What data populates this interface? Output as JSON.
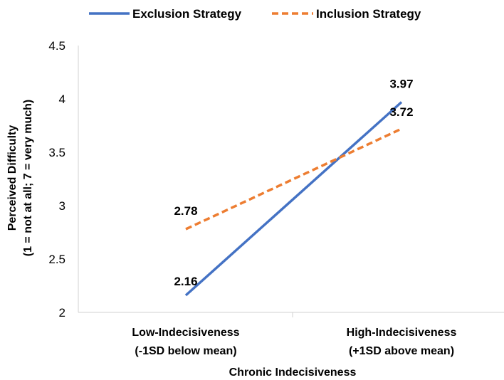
{
  "chart_data": {
    "type": "line",
    "categories": [
      "Low-Indecisiveness",
      "High-Indecisiveness"
    ],
    "category_sublabels": [
      "(-1SD below mean)",
      "(+1SD above mean)"
    ],
    "series": [
      {
        "name": "Exclusion Strategy",
        "values": [
          2.16,
          3.97
        ],
        "color": "#4472C4",
        "dash": "solid"
      },
      {
        "name": "Inclusion Strategy",
        "values": [
          2.78,
          3.72
        ],
        "color": "#ED7D31",
        "dash": "dashed"
      }
    ],
    "xlabel": "Chronic Indecisiveness",
    "ylabel": "Perceived Difficulty",
    "ylabel_sub": "(1 = not at all; 7 = very much)",
    "ylim": [
      2,
      4.5
    ],
    "yticks": [
      "2",
      "2.5",
      "3",
      "3.5",
      "4",
      "4.5"
    ],
    "ytick_values": [
      2,
      2.5,
      3,
      3.5,
      4,
      4.5
    ],
    "data_labels": [
      "2.16",
      "3.97",
      "2.78",
      "3.72"
    ],
    "legend_position": "top",
    "grid": false
  }
}
